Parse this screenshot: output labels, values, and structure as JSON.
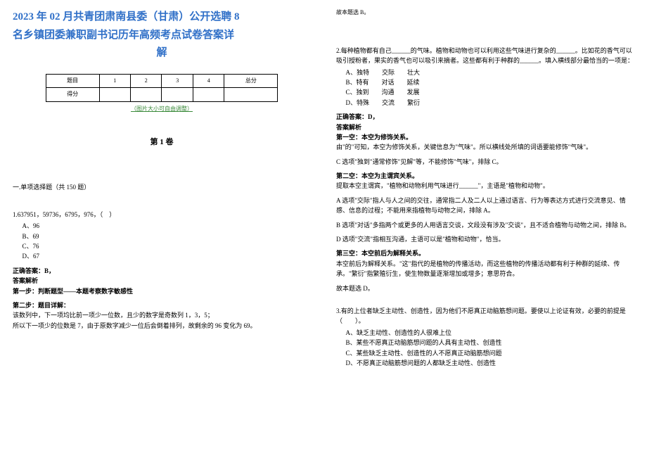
{
  "title_line1": "2023 年 02 月共青团肃南县委（甘肃）公开选聘 8",
  "title_line2": "名乡镇团委兼职副书记历年高频考点试卷答案详",
  "title_line3": "解",
  "score_headers": [
    "题目",
    "1",
    "2",
    "3",
    "4",
    "总分"
  ],
  "score_row_label": "得分",
  "img_note": "（图片大小可自由调整）",
  "volume_title": "第 1 卷",
  "section1_title": "一.单项选择题（共 150 题）",
  "q1": {
    "stem": "1.637951，59736，6795，976，（　）",
    "opts": [
      "A、96",
      "B、69",
      "C、76",
      "D、67"
    ],
    "ans_label": "正确答案：B，",
    "analysis_label": "答案解析",
    "step1": "第一步：判断题型——本题考察数字敏感性",
    "step2a": "第二步：题目详解：",
    "step2b": "该数列中，下一项均比前一项少一位数，且少的数字是奇数列 1，3，5；",
    "step2c": "所以下一项少的位数是 7，由于原数字减少一位后会倒着排列，故剩余的 96 变化为 69。"
  },
  "top_right_note": "故本题选 B。",
  "q2": {
    "stem_a": "2.每种植物都有自己______的气味。植物和动物也可以利用这些气味进行复杂的______。比如花的香气可以吸引授粉者，果实的香气也可以吸引来摘者。这些都有利于种群的______。填入横线部分最恰当的一项是：",
    "opts": [
      "A、独特　　交际　　壮大",
      "B、特有　　对话　　延续",
      "C、独到　　沟通　　发展",
      "D、特殊　　交流　　繁衍"
    ],
    "ans_label": "正确答案：D，",
    "analysis_label": "答案解析",
    "s1": "第一空：本空为修饰关系。",
    "s1b": "由\"的\"可知，本空为修饰关系，关键信息为\"气味\"。所以横线处所填的词语要能修饰\"气味\"。",
    "s1c": "C 选项\"独到\"通常修饰\"见解\"等，不能修饰\"气味\"，排除 C。",
    "s2": "第二空：本空为主谓宾关系。",
    "s2b": "提取本空主谓宾，\"植物和动物利用气味进行______\"，主语是\"植物和动物\"。",
    "s2c": "A 选项\"交际\"指人与人之间的交往，通常指二人及二人以上通过语言、行为等表达方式进行交流意见、情感、信息的过程；不能用来指植物与动物之间，排除 A。",
    "s2d": "B 选项\"对话\"多指两个或更多的人用语言交谈，文段没有涉及\"交谈\"，且不适合植物与动物之间，排除 B。",
    "s2e": "D 选项\"交流\"指相互沟通，主语可以是\"植物和动物\"，恰当。",
    "s3": "第三空：本空前后为解释关系。",
    "s3b": "本空前后为解释关系。\"这\"指代的是植物的传播活动，而这些植物的传播活动都有利于种群的延续、传承。\"繁衍\"指繁殖衍生，使生物数量逐渐增加或增多；意思符合。",
    "s3c": "故本题选 D。"
  },
  "q3": {
    "stem": "3.有的上位者缺乏主动性、创造性，因为他们不愿真正动脑筋想问题。要使以上论证有效，必要的前提是（　　）。",
    "opts": [
      "A、缺乏主动性、创造性的人很难上位",
      "B、某些不愿真正动脑筋想问题的人具有主动性、创造性",
      "C、某些缺乏主动性、创造性的人不愿真正动脑筋想问题",
      "D、不愿真正动脑筋想问题的人都缺乏主动性、创造性"
    ]
  }
}
